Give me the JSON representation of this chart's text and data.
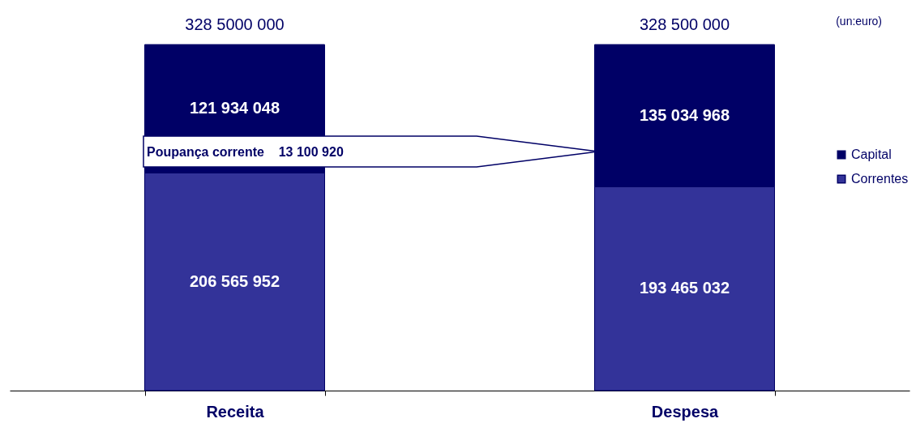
{
  "chart_data": {
    "type": "bar",
    "stacked": true,
    "categories": [
      "Receita",
      "Despesa"
    ],
    "series": [
      {
        "name": "Correntes",
        "color": "#333399",
        "values": [
          206565952,
          193465032
        ],
        "value_labels": [
          "206 565 952",
          "193 465 032"
        ]
      },
      {
        "name": "Capital",
        "color": "#000066",
        "values": [
          121934048,
          135034968
        ],
        "value_labels": [
          "121 934 048",
          "135 034 968"
        ]
      }
    ],
    "totals": [
      "328 5000 000",
      "328 500 000"
    ],
    "annotations": [
      "(un:euro)",
      "Poupança corrente    13 100 920"
    ],
    "legend": "right",
    "tick_labels": "x"
  }
}
